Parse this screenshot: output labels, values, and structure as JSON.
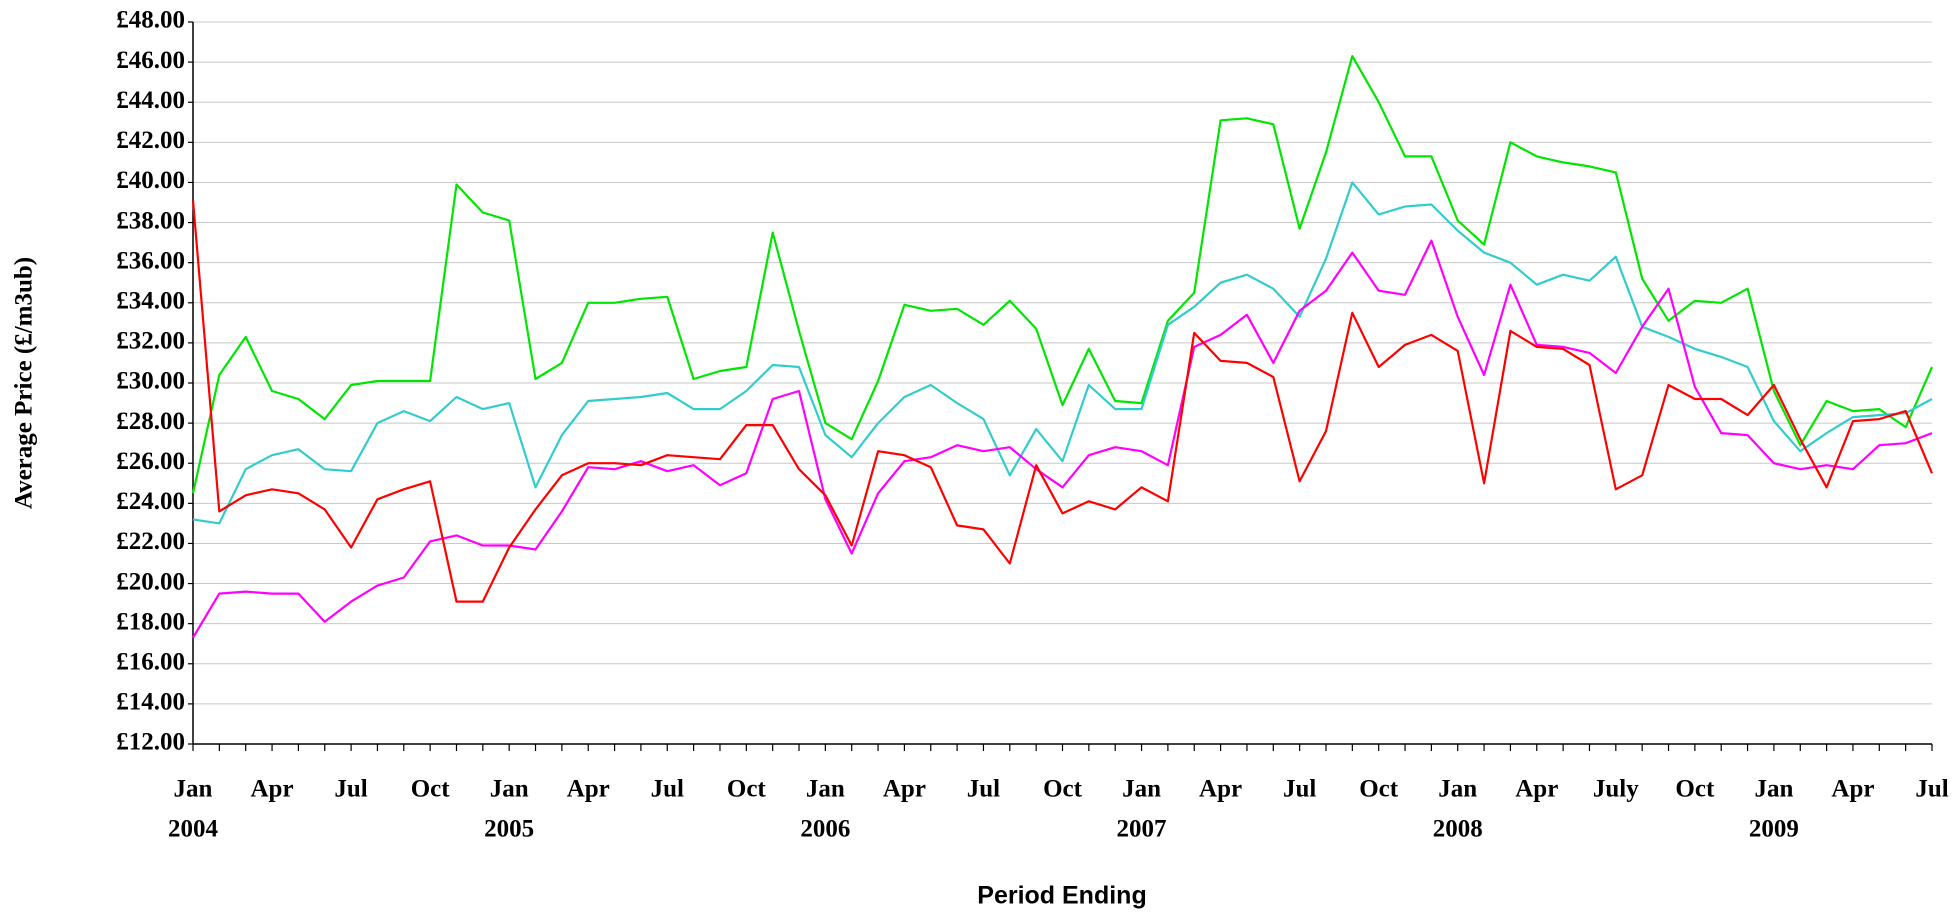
{
  "chart_data": {
    "type": "line",
    "y_label": "Average Price (£/m3ub)",
    "x_label": "Period Ending",
    "categories": [
      "Jan",
      null,
      null,
      "Apr",
      null,
      null,
      "Jul",
      null,
      null,
      "Oct",
      null,
      null,
      "Jan",
      null,
      null,
      "Apr",
      null,
      null,
      "Jul",
      null,
      null,
      "Oct",
      null,
      null,
      "Jan",
      null,
      null,
      "Apr",
      null,
      null,
      "Jul",
      null,
      null,
      "Oct",
      null,
      null,
      "Jan",
      null,
      null,
      "Apr",
      null,
      null,
      "Jul",
      null,
      null,
      "Oct",
      null,
      null,
      "Jan",
      null,
      null,
      "Apr",
      null,
      null,
      "July",
      null,
      null,
      "Oct",
      null,
      null,
      "Jan",
      null,
      null,
      "Apr",
      null,
      null,
      "Jul"
    ],
    "year_labels": [
      "2004",
      null,
      null,
      null,
      null,
      null,
      null,
      null,
      null,
      null,
      null,
      null,
      "2005",
      null,
      null,
      null,
      null,
      null,
      null,
      null,
      null,
      null,
      null,
      null,
      "2006",
      null,
      null,
      null,
      null,
      null,
      null,
      null,
      null,
      null,
      null,
      null,
      "2007",
      null,
      null,
      null,
      null,
      null,
      null,
      null,
      null,
      null,
      null,
      null,
      "2008",
      null,
      null,
      null,
      null,
      null,
      null,
      null,
      null,
      null,
      null,
      null,
      "2009",
      null,
      null,
      null,
      null,
      null,
      null
    ],
    "series": [
      {
        "color": "#00e600",
        "values": [
          24.5,
          30.4,
          32.3,
          29.6,
          29.2,
          28.2,
          29.9,
          30.1,
          30.1,
          30.1,
          39.9,
          38.5,
          38.1,
          30.2,
          31.0,
          34.0,
          34.0,
          34.2,
          34.3,
          30.2,
          30.6,
          30.8,
          37.5,
          32.6,
          28.0,
          27.2,
          30.1,
          33.9,
          33.6,
          33.7,
          32.9,
          34.1,
          32.7,
          28.9,
          31.7,
          29.1,
          29.0,
          33.1,
          34.5,
          43.1,
          43.2,
          42.9,
          37.7,
          41.5,
          46.3,
          44.0,
          41.3,
          41.3,
          38.1,
          36.9,
          42.0,
          41.3,
          41.0,
          40.8,
          40.5,
          35.2,
          33.1,
          34.1,
          34.0,
          34.7,
          29.6,
          26.9,
          29.1,
          28.6,
          28.7,
          27.8,
          30.8
        ]
      },
      {
        "color": "#33cccc",
        "values": [
          23.2,
          23.0,
          25.7,
          26.4,
          26.7,
          25.7,
          25.6,
          28.0,
          28.6,
          28.1,
          29.3,
          28.7,
          29.0,
          24.8,
          27.4,
          29.1,
          29.2,
          29.3,
          29.5,
          28.7,
          28.7,
          29.6,
          30.9,
          30.8,
          27.4,
          26.3,
          28.0,
          29.3,
          29.9,
          29.0,
          28.2,
          25.4,
          27.7,
          26.1,
          29.9,
          28.7,
          28.7,
          32.9,
          33.8,
          35.0,
          35.4,
          34.7,
          33.3,
          36.2,
          40.0,
          38.4,
          38.8,
          38.9,
          37.6,
          36.5,
          36.0,
          34.9,
          35.4,
          35.1,
          36.3,
          32.8,
          32.3,
          31.7,
          31.3,
          30.8,
          28.1,
          26.6,
          27.5,
          28.3,
          28.4,
          28.5,
          29.2
        ]
      },
      {
        "color": "#ff00ff",
        "values": [
          17.3,
          19.5,
          19.6,
          19.5,
          19.5,
          18.1,
          19.1,
          19.9,
          20.3,
          22.1,
          22.4,
          21.9,
          21.9,
          21.7,
          23.6,
          25.8,
          25.7,
          26.1,
          25.6,
          25.9,
          24.9,
          25.5,
          29.2,
          29.6,
          24.2,
          21.5,
          24.5,
          26.1,
          26.3,
          26.9,
          26.6,
          26.8,
          25.7,
          24.8,
          26.4,
          26.8,
          26.6,
          25.9,
          31.8,
          32.4,
          33.4,
          31.0,
          33.6,
          34.6,
          36.5,
          34.6,
          34.4,
          37.1,
          33.3,
          30.4,
          34.9,
          31.9,
          31.8,
          31.5,
          30.5,
          32.8,
          34.7,
          29.8,
          27.5,
          27.4,
          26.0,
          25.7,
          25.9,
          25.7,
          26.9,
          27.0,
          27.5
        ]
      },
      {
        "color": "#ff0000",
        "values": [
          39.1,
          23.6,
          24.4,
          24.7,
          24.5,
          23.7,
          21.8,
          24.2,
          24.7,
          25.1,
          19.1,
          19.1,
          21.8,
          23.7,
          25.4,
          26.0,
          26.0,
          25.9,
          26.4,
          26.3,
          26.2,
          27.9,
          27.9,
          25.7,
          24.4,
          21.9,
          26.6,
          26.4,
          25.8,
          22.9,
          22.7,
          21.0,
          25.9,
          23.5,
          24.1,
          23.7,
          24.8,
          24.1,
          32.5,
          31.1,
          31.0,
          30.3,
          25.1,
          27.6,
          33.5,
          30.8,
          31.9,
          32.4,
          31.6,
          25.0,
          32.6,
          31.8,
          31.7,
          30.9,
          24.7,
          25.4,
          29.9,
          29.2,
          29.2,
          28.4,
          29.9,
          27.2,
          24.8,
          28.1,
          28.2,
          28.6,
          25.5
        ]
      }
    ],
    "ylim": [
      12,
      48
    ],
    "yticks": [
      {
        "value": 12,
        "label": "£12.00"
      },
      {
        "value": 14,
        "label": "£14.00"
      },
      {
        "value": 16,
        "label": "£16.00"
      },
      {
        "value": 18,
        "label": "£18.00"
      },
      {
        "value": 20,
        "label": "£20.00"
      },
      {
        "value": 22,
        "label": "£22.00"
      },
      {
        "value": 24,
        "label": "£24.00"
      },
      {
        "value": 26,
        "label": "£26.00"
      },
      {
        "value": 28,
        "label": "£28.00"
      },
      {
        "value": 30,
        "label": "£30.00"
      },
      {
        "value": 32,
        "label": "£32.00"
      },
      {
        "value": 34,
        "label": "£34.00"
      },
      {
        "value": 36,
        "label": "£36.00"
      },
      {
        "value": 38,
        "label": "£38.00"
      },
      {
        "value": 40,
        "label": "£40.00"
      },
      {
        "value": 42,
        "label": "£42.00"
      },
      {
        "value": 44,
        "label": "£44.00"
      },
      {
        "value": 46,
        "label": "£46.00"
      },
      {
        "value": 48,
        "label": "£48.00"
      }
    ],
    "grid": true
  }
}
